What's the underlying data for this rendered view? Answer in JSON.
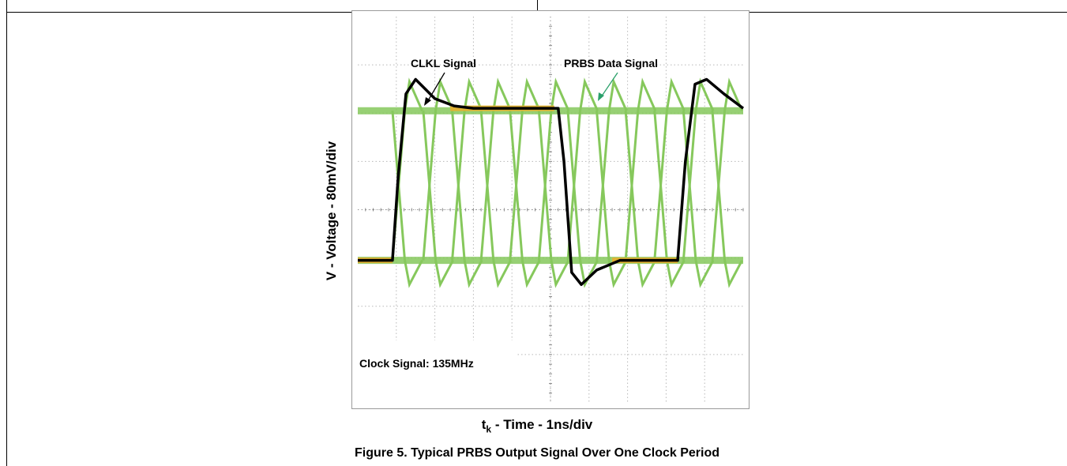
{
  "chart_data": {
    "type": "line",
    "ylabel": "V - Voltage - 80mV/div",
    "xlabel_main": "t",
    "xlabel_sub": "k",
    "xlabel_rest": " - Time - 1ns/div",
    "caption": "Figure 5. Typical PRBS Output Signal Over One Clock Period",
    "annotations": {
      "clock_label": "CLKL Signal",
      "data_label": "PRBS Data Signal",
      "frequency_note": "Clock Signal: 135MHz"
    },
    "grid": true,
    "x_divisions": 10,
    "y_divisions": 8,
    "x_range_ns": [
      0,
      10
    ],
    "y_range_div": [
      0,
      8
    ],
    "series": [
      {
        "name": "CLKL Signal",
        "color": "#000000",
        "points": [
          [
            0,
            2.95
          ],
          [
            0.9,
            2.95
          ],
          [
            1.05,
            4.7
          ],
          [
            1.25,
            6.4
          ],
          [
            1.5,
            6.7
          ],
          [
            2.0,
            6.3
          ],
          [
            2.5,
            6.15
          ],
          [
            3.0,
            6.1
          ],
          [
            4.0,
            6.1
          ],
          [
            5.2,
            6.1
          ],
          [
            5.35,
            5.0
          ],
          [
            5.55,
            2.7
          ],
          [
            5.8,
            2.45
          ],
          [
            6.2,
            2.75
          ],
          [
            6.8,
            2.95
          ],
          [
            8.3,
            2.95
          ],
          [
            8.5,
            5.0
          ],
          [
            8.75,
            6.6
          ],
          [
            9.05,
            6.7
          ],
          [
            9.5,
            6.4
          ],
          [
            10,
            6.1
          ]
        ]
      },
      {
        "name": "PRBS Data Signal",
        "color": "#86c85c",
        "high_level_div": 6.05,
        "low_level_div": 2.95,
        "overshoot_div": 6.65,
        "undershoot_div": 2.45,
        "bit_edges_ns": [
          0.9,
          1.7,
          2.45,
          3.2,
          3.95,
          4.7,
          5.45,
          6.2,
          6.95,
          7.7,
          8.45,
          9.2
        ]
      }
    ],
    "colors": {
      "background": "#ffffff",
      "grid": "#b8b8b8",
      "clock": "#000000",
      "data": "#86c85c",
      "highlight": "#e0b234"
    }
  }
}
